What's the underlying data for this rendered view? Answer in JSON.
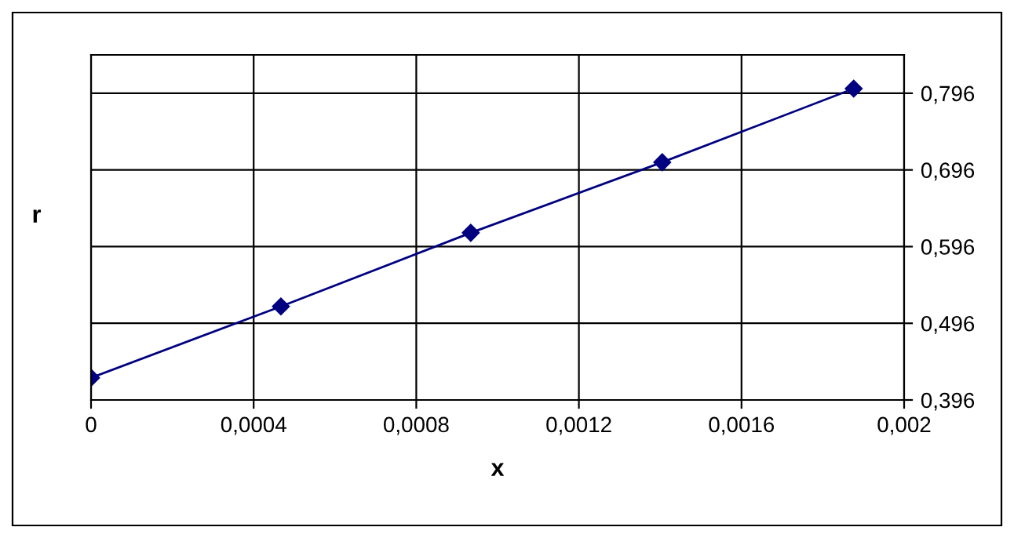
{
  "chart_data": {
    "type": "line",
    "xlabel": "x",
    "ylabel": "r",
    "x": [
      0,
      0.000467,
      0.000934,
      0.001405,
      0.001876
    ],
    "series": [
      {
        "color": "#000080",
        "values": [
          0.425,
          0.518,
          0.614,
          0.706,
          0.802
        ]
      }
    ],
    "xlim": [
      0,
      0.002
    ],
    "ylim": [
      0.396,
      0.846
    ],
    "xticks": [
      {
        "value": 0,
        "label": "0"
      },
      {
        "value": 0.0004,
        "label": "0,0004"
      },
      {
        "value": 0.0008,
        "label": "0,0008"
      },
      {
        "value": 0.0012,
        "label": "0,0012"
      },
      {
        "value": 0.0016,
        "label": "0,0016"
      },
      {
        "value": 0.002,
        "label": "0,002"
      }
    ],
    "yticks": [
      {
        "value": 0.396,
        "label": "0,396"
      },
      {
        "value": 0.496,
        "label": "0,496"
      },
      {
        "value": 0.596,
        "label": "0,596"
      },
      {
        "value": 0.696,
        "label": "0,696"
      },
      {
        "value": 0.796,
        "label": "0,796"
      }
    ],
    "grid": true,
    "marker": "diamond",
    "line_style": "solid"
  }
}
